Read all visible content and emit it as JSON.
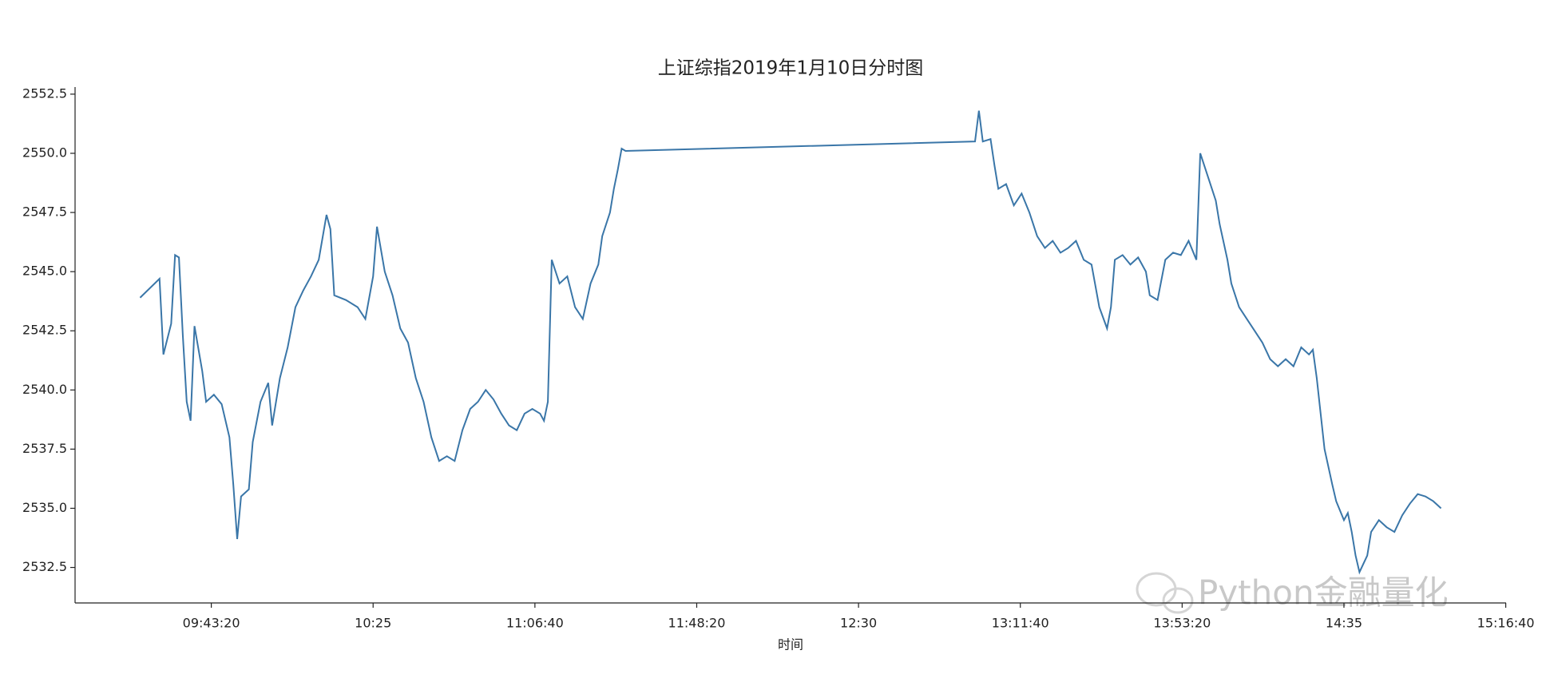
{
  "chart_data": {
    "type": "line",
    "title": "上证综指2019年1月10日分时图",
    "xlabel": "时间",
    "watermark": "Python金融量化",
    "color": "#3a76a8",
    "x": [
      "09:25",
      "09:30",
      "09:31",
      "09:33",
      "09:34",
      "09:35",
      "09:36",
      "09:37",
      "09:38",
      "09:39",
      "09:41",
      "09:42",
      "09:44",
      "09:46",
      "09:48",
      "09:49",
      "09:50",
      "09:51",
      "09:53",
      "09:54",
      "09:56",
      "09:58",
      "09:59",
      "10:01",
      "10:03",
      "10:05",
      "10:07",
      "10:09",
      "10:11",
      "10:13",
      "10:14",
      "10:15",
      "10:18",
      "10:21",
      "10:23",
      "10:25",
      "10:26",
      "10:28",
      "10:30",
      "10:32",
      "10:34",
      "10:36",
      "10:38",
      "10:40",
      "10:42",
      "10:44",
      "10:46",
      "10:48",
      "10:50",
      "10:52",
      "10:54",
      "10:56",
      "10:58",
      "11:00",
      "11:02",
      "11:04",
      "11:06",
      "11:08",
      "11:09",
      "11:10",
      "11:11",
      "11:13",
      "11:15",
      "11:17",
      "11:19",
      "11:21",
      "11:23",
      "11:24",
      "11:26",
      "11:27",
      "11:28",
      "11:29",
      "11:30",
      "13:00",
      "13:01",
      "13:02",
      "13:04",
      "13:05",
      "13:06",
      "13:08",
      "13:10",
      "13:12",
      "13:14",
      "13:16",
      "13:18",
      "13:20",
      "13:22",
      "13:24",
      "13:26",
      "13:28",
      "13:30",
      "13:32",
      "13:34",
      "13:35",
      "13:36",
      "13:38",
      "13:40",
      "13:42",
      "13:44",
      "13:45",
      "13:47",
      "13:49",
      "13:51",
      "13:53",
      "13:55",
      "13:57",
      "13:58",
      "14:00",
      "14:02",
      "14:03",
      "14:05",
      "14:06",
      "14:08",
      "14:10",
      "14:12",
      "14:14",
      "14:16",
      "14:18",
      "14:20",
      "14:22",
      "14:24",
      "14:26",
      "14:27",
      "14:28",
      "14:30",
      "14:32",
      "14:33",
      "14:35",
      "14:36",
      "14:37",
      "14:38",
      "14:39",
      "14:41",
      "14:42",
      "14:44",
      "14:46",
      "14:48",
      "14:50",
      "14:52",
      "14:54",
      "14:56",
      "14:58",
      "15:00"
    ],
    "values": [
      2543.9,
      2544.7,
      2541.5,
      2542.8,
      2545.7,
      2545.6,
      2542.3,
      2539.5,
      2538.7,
      2542.7,
      2540.8,
      2539.5,
      2539.8,
      2539.4,
      2538.0,
      2536.0,
      2533.7,
      2535.5,
      2535.8,
      2537.8,
      2539.5,
      2540.3,
      2538.5,
      2540.5,
      2541.8,
      2543.5,
      2544.2,
      2544.8,
      2545.5,
      2547.4,
      2546.8,
      2544.0,
      2543.8,
      2543.5,
      2543.0,
      2544.8,
      2546.9,
      2545.0,
      2544.0,
      2542.6,
      2542.0,
      2540.5,
      2539.5,
      2538.0,
      2537.0,
      2537.2,
      2537.0,
      2538.3,
      2539.2,
      2539.5,
      2540.0,
      2539.6,
      2539.0,
      2538.5,
      2538.3,
      2539.0,
      2539.2,
      2539.0,
      2538.7,
      2539.5,
      2545.5,
      2544.5,
      2544.8,
      2543.5,
      2543.0,
      2544.5,
      2545.3,
      2546.5,
      2547.5,
      2548.5,
      2549.3,
      2550.2,
      2550.1,
      2550.5,
      2551.8,
      2550.5,
      2550.6,
      2549.5,
      2548.5,
      2548.7,
      2547.8,
      2548.3,
      2547.5,
      2546.5,
      2546.0,
      2546.3,
      2545.8,
      2546.0,
      2546.3,
      2545.5,
      2545.3,
      2543.5,
      2542.6,
      2543.5,
      2545.5,
      2545.7,
      2545.3,
      2545.6,
      2545.0,
      2544.0,
      2543.8,
      2545.5,
      2545.8,
      2545.7,
      2546.3,
      2545.5,
      2550.0,
      2549.0,
      2548.0,
      2547.0,
      2545.5,
      2544.5,
      2543.5,
      2543.0,
      2542.5,
      2542.0,
      2541.3,
      2541.0,
      2541.3,
      2541.0,
      2541.8,
      2541.5,
      2541.7,
      2540.5,
      2537.5,
      2536.0,
      2535.3,
      2534.5,
      2534.8,
      2534.0,
      2533.0,
      2532.3,
      2533.0,
      2534.0,
      2534.5,
      2534.2,
      2534.0,
      2534.7,
      2535.2,
      2535.6,
      2535.5,
      2535.3,
      2535.0
    ],
    "xlim": [
      "09:08:15",
      "15:16:45"
    ],
    "xticks": [
      "09:43:20",
      "10:25",
      "11:06:40",
      "11:48:20",
      "12:30",
      "13:11:40",
      "13:53:20",
      "14:35",
      "15:16:40"
    ],
    "ylim": [
      2531.0,
      2552.8
    ],
    "yticks": [
      {
        "value": 2532.5,
        "label": "2532.5"
      },
      {
        "value": 2535,
        "label": "2535.0"
      },
      {
        "value": 2537.5,
        "label": "2537.5"
      },
      {
        "value": 2540,
        "label": "2540.0"
      },
      {
        "value": 2542.5,
        "label": "2542.5"
      },
      {
        "value": 2545,
        "label": "2545.0"
      },
      {
        "value": 2547.5,
        "label": "2547.5"
      },
      {
        "value": 2550,
        "label": "2550.0"
      },
      {
        "value": 2552.5,
        "label": "2552.5"
      }
    ],
    "grid": false
  }
}
